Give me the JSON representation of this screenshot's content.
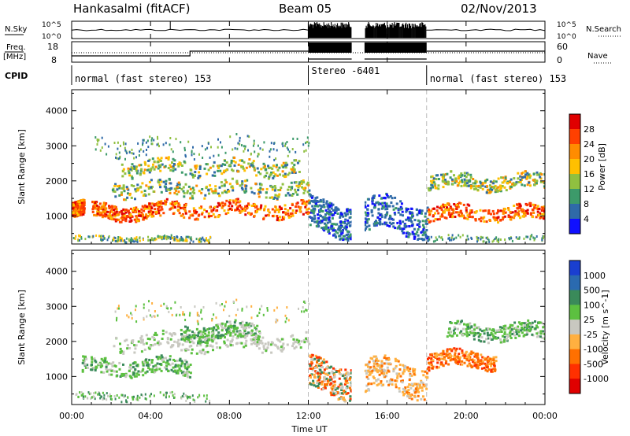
{
  "header": {
    "station": "Hankasalmi (fitACF)",
    "beam": "Beam 05",
    "date": "02/Nov/2013"
  },
  "panels": {
    "nsky_label": "N.Sky",
    "nsearch_label": "N.Search",
    "freq_label_line1": "Freq.",
    "freq_label_line2": "[MHz]",
    "nave_label": "Nave",
    "cpid_label": "CPID",
    "nsky_ticks": [
      "10^5",
      "10^0"
    ],
    "nsearch_ticks": [
      "10^5",
      "10^0"
    ],
    "freq_ticks": [
      "18",
      "8"
    ],
    "nave_ticks": [
      "60",
      "0"
    ]
  },
  "cpid_segments": [
    {
      "label": "normal (fast stereo) 153",
      "start_h": 0,
      "end_h": 12
    },
    {
      "label": "Stereo  -6401",
      "start_h": 12,
      "end_h": 18
    },
    {
      "label": "normal (fast stereo) 153",
      "start_h": 18,
      "end_h": 24
    }
  ],
  "x_axis": {
    "label": "Time UT",
    "ticks": [
      "00:00",
      "04:00",
      "08:00",
      "12:00",
      "16:00",
      "20:00",
      "00:00"
    ],
    "tick_hours": [
      0,
      4,
      8,
      12,
      16,
      20,
      24
    ]
  },
  "chart_data": [
    {
      "type": "heatmap",
      "title": "",
      "xlabel": "Time UT",
      "ylabel": "Slant Range [km]",
      "xlim": [
        0,
        24
      ],
      "ylim": [
        200,
        4600
      ],
      "yticks": [
        1000,
        2000,
        3000,
        4000
      ],
      "colorbar": {
        "label": "Power [dB]",
        "ticks": [
          "28",
          "24",
          "20",
          "16",
          "12",
          "8",
          "4"
        ],
        "colors": [
          "#e00000",
          "#ff4000",
          "#ff8c00",
          "#ffc000",
          "#90c040",
          "#3c9a6a",
          "#2f6aa8",
          "#1010ff"
        ]
      },
      "features": [
        {
          "t0": 0.0,
          "t1": 0.6,
          "range": 1200,
          "level": "high"
        },
        {
          "t0": 1.0,
          "t1": 4.5,
          "range": 1150,
          "level": "high"
        },
        {
          "t0": 4.5,
          "t1": 12.0,
          "range": 1200,
          "level": "high"
        },
        {
          "t0": 2.0,
          "t1": 12.0,
          "range": 1800,
          "level": "medium"
        },
        {
          "t0": 2.5,
          "t1": 11.5,
          "range": 2400,
          "level": "medium"
        },
        {
          "t0": 12.0,
          "t1": 14.2,
          "range": 1000,
          "level": "low"
        },
        {
          "t0": 14.8,
          "t1": 18.0,
          "range": 1000,
          "level": "low"
        },
        {
          "t0": 18.0,
          "t1": 24.0,
          "range": 1100,
          "level": "high"
        },
        {
          "t0": 18.0,
          "t1": 24.0,
          "range": 2000,
          "level": "medium"
        }
      ]
    },
    {
      "type": "heatmap",
      "title": "",
      "xlabel": "Time UT",
      "ylabel": "Slant Range [km]",
      "xlim": [
        0,
        24
      ],
      "ylim": [
        200,
        4600
      ],
      "yticks": [
        1000,
        2000,
        3000,
        4000
      ],
      "colorbar": {
        "label": "Velocity [m s^-1]",
        "ticks": [
          "1000",
          "500",
          "100",
          "25",
          "-25",
          "-100",
          "-500",
          "-1000"
        ],
        "colors": [
          "#1a3fd0",
          "#2a6ab0",
          "#3a8a5a",
          "#5cc040",
          "#c8c8c0",
          "#ffb040",
          "#ff7000",
          "#ff3000",
          "#e00000"
        ]
      },
      "features": [
        {
          "t0": 0.5,
          "t1": 6.0,
          "range": 1300,
          "level": "positive-small"
        },
        {
          "t0": 2.0,
          "t1": 12.0,
          "range": 2000,
          "level": "near-zero"
        },
        {
          "t0": 5.5,
          "t1": 9.5,
          "range": 2300,
          "level": "positive-small"
        },
        {
          "t0": 12.0,
          "t1": 14.2,
          "range": 1000,
          "level": "mixed"
        },
        {
          "t0": 14.8,
          "t1": 18.0,
          "range": 1000,
          "level": "negative-small"
        },
        {
          "t0": 18.0,
          "t1": 21.5,
          "range": 1500,
          "level": "negative-medium"
        },
        {
          "t0": 19.0,
          "t1": 24.0,
          "range": 2300,
          "level": "positive-small"
        }
      ]
    }
  ]
}
